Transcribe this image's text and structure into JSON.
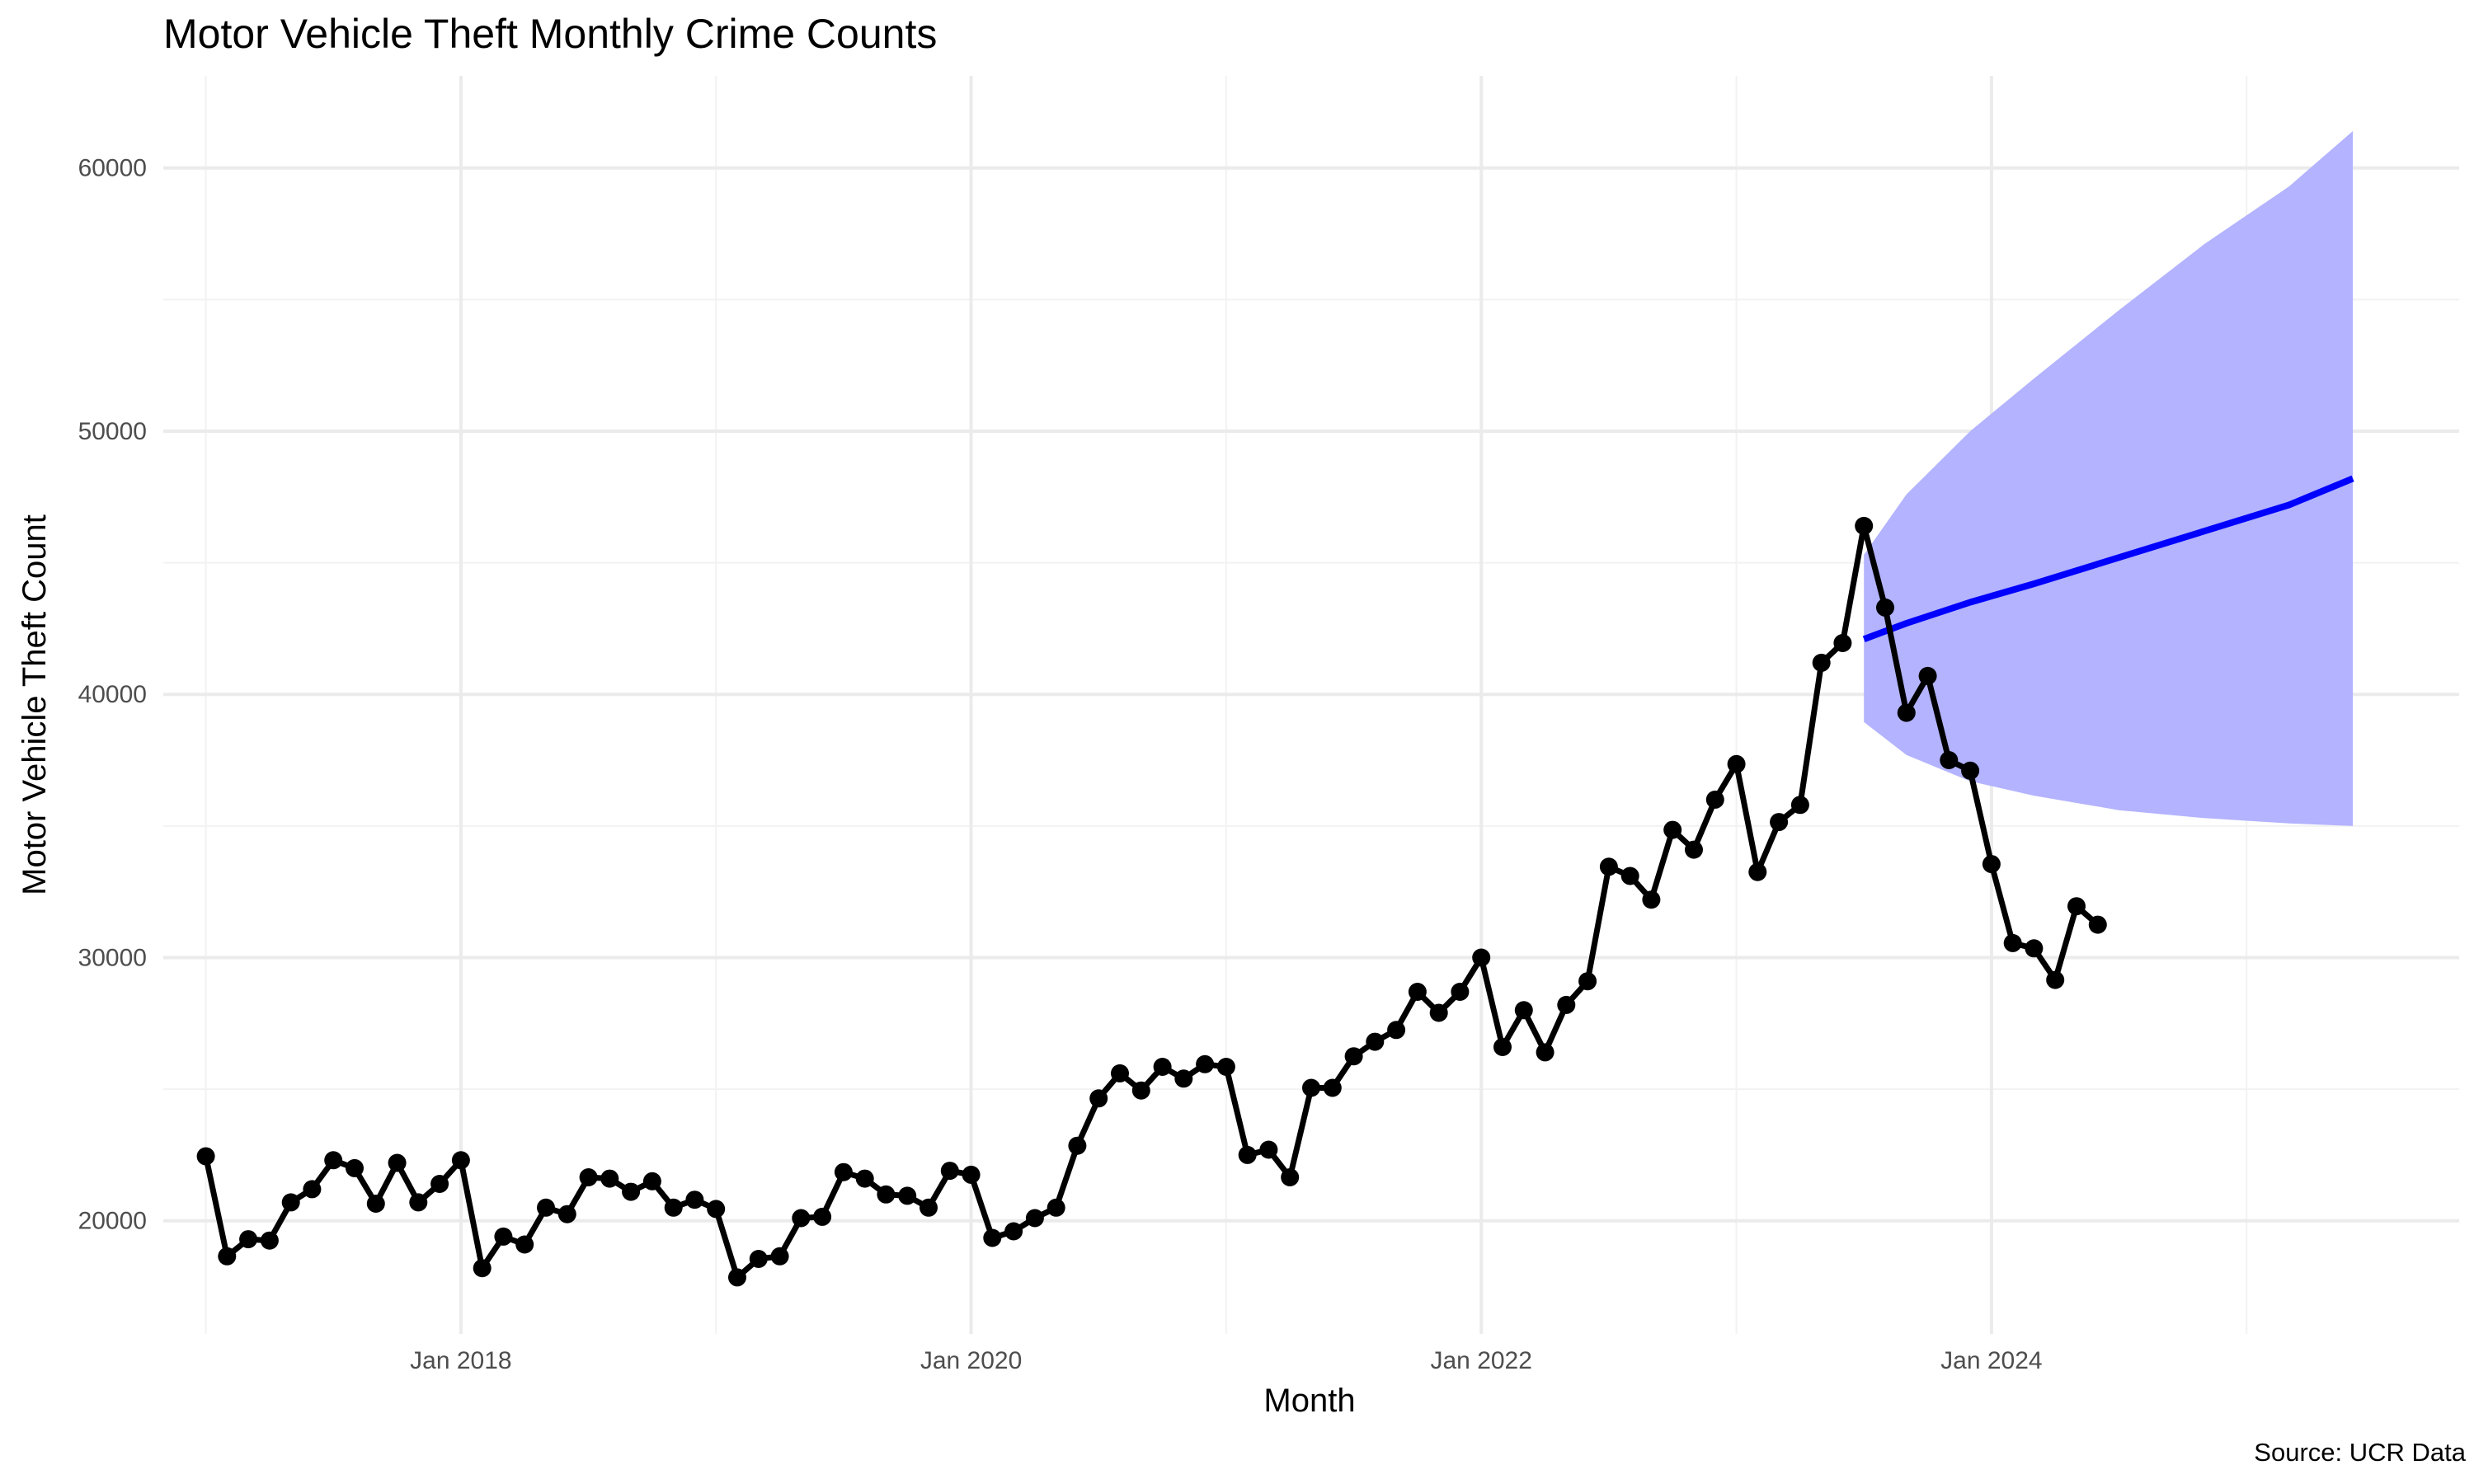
{
  "chart_data": {
    "type": "line",
    "title": "Motor Vehicle Theft Monthly Crime Counts",
    "xlabel": "Month",
    "ylabel": "Motor Vehicle Theft Count",
    "caption": "Source: UCR Data",
    "x_ticks": [
      {
        "date": "2018-01",
        "label": "Jan 2018"
      },
      {
        "date": "2020-01",
        "label": "Jan 2020"
      },
      {
        "date": "2022-01",
        "label": "Jan 2022"
      },
      {
        "date": "2024-01",
        "label": "Jan 2024"
      }
    ],
    "xlim": [
      "2016-11",
      "2025-11"
    ],
    "y_ticks": [
      {
        "value": 20000,
        "label": "20000"
      },
      {
        "value": 30000,
        "label": "30000"
      },
      {
        "value": 40000,
        "label": "40000"
      },
      {
        "value": 50000,
        "label": "50000"
      },
      {
        "value": 60000,
        "label": "60000"
      }
    ],
    "ylim": [
      15700,
      63500
    ],
    "grid": true,
    "series": [
      {
        "color": "#000000",
        "style": "line-with-points",
        "points": [
          {
            "x": "2017-01",
            "y": 22450
          },
          {
            "x": "2017-02",
            "y": 18650
          },
          {
            "x": "2017-03",
            "y": 19300
          },
          {
            "x": "2017-04",
            "y": 19250
          },
          {
            "x": "2017-05",
            "y": 20700
          },
          {
            "x": "2017-06",
            "y": 21200
          },
          {
            "x": "2017-07",
            "y": 22300
          },
          {
            "x": "2017-08",
            "y": 22000
          },
          {
            "x": "2017-09",
            "y": 20650
          },
          {
            "x": "2017-10",
            "y": 22200
          },
          {
            "x": "2017-11",
            "y": 20700
          },
          {
            "x": "2017-12",
            "y": 21400
          },
          {
            "x": "2018-01",
            "y": 22300
          },
          {
            "x": "2018-02",
            "y": 18200
          },
          {
            "x": "2018-03",
            "y": 19400
          },
          {
            "x": "2018-04",
            "y": 19100
          },
          {
            "x": "2018-05",
            "y": 20500
          },
          {
            "x": "2018-06",
            "y": 20250
          },
          {
            "x": "2018-07",
            "y": 21650
          },
          {
            "x": "2018-08",
            "y": 21600
          },
          {
            "x": "2018-09",
            "y": 21100
          },
          {
            "x": "2018-10",
            "y": 21500
          },
          {
            "x": "2018-11",
            "y": 20500
          },
          {
            "x": "2018-12",
            "y": 20800
          },
          {
            "x": "2019-01",
            "y": 20450
          },
          {
            "x": "2019-02",
            "y": 17850
          },
          {
            "x": "2019-03",
            "y": 18550
          },
          {
            "x": "2019-04",
            "y": 18650
          },
          {
            "x": "2019-05",
            "y": 20100
          },
          {
            "x": "2019-06",
            "y": 20150
          },
          {
            "x": "2019-07",
            "y": 21850
          },
          {
            "x": "2019-08",
            "y": 21600
          },
          {
            "x": "2019-09",
            "y": 21000
          },
          {
            "x": "2019-10",
            "y": 20950
          },
          {
            "x": "2019-11",
            "y": 20500
          },
          {
            "x": "2019-12",
            "y": 21900
          },
          {
            "x": "2020-01",
            "y": 21750
          },
          {
            "x": "2020-02",
            "y": 19350
          },
          {
            "x": "2020-03",
            "y": 19600
          },
          {
            "x": "2020-04",
            "y": 20100
          },
          {
            "x": "2020-05",
            "y": 20500
          },
          {
            "x": "2020-06",
            "y": 22850
          },
          {
            "x": "2020-07",
            "y": 24650
          },
          {
            "x": "2020-08",
            "y": 25600
          },
          {
            "x": "2020-09",
            "y": 24950
          },
          {
            "x": "2020-10",
            "y": 25850
          },
          {
            "x": "2020-11",
            "y": 25400
          },
          {
            "x": "2020-12",
            "y": 25950
          },
          {
            "x": "2021-01",
            "y": 25850
          },
          {
            "x": "2021-02",
            "y": 22500
          },
          {
            "x": "2021-03",
            "y": 22700
          },
          {
            "x": "2021-04",
            "y": 21650
          },
          {
            "x": "2021-05",
            "y": 25050
          },
          {
            "x": "2021-06",
            "y": 25050
          },
          {
            "x": "2021-07",
            "y": 26250
          },
          {
            "x": "2021-08",
            "y": 26800
          },
          {
            "x": "2021-09",
            "y": 27250
          },
          {
            "x": "2021-10",
            "y": 28700
          },
          {
            "x": "2021-11",
            "y": 27900
          },
          {
            "x": "2021-12",
            "y": 28700
          },
          {
            "x": "2022-01",
            "y": 30000
          },
          {
            "x": "2022-02",
            "y": 26600
          },
          {
            "x": "2022-03",
            "y": 28000
          },
          {
            "x": "2022-04",
            "y": 26400
          },
          {
            "x": "2022-05",
            "y": 28200
          },
          {
            "x": "2022-06",
            "y": 29100
          },
          {
            "x": "2022-07",
            "y": 33450
          },
          {
            "x": "2022-08",
            "y": 33100
          },
          {
            "x": "2022-09",
            "y": 32200
          },
          {
            "x": "2022-10",
            "y": 34850
          },
          {
            "x": "2022-11",
            "y": 34100
          },
          {
            "x": "2022-12",
            "y": 36000
          },
          {
            "x": "2023-01",
            "y": 37350
          },
          {
            "x": "2023-02",
            "y": 33250
          },
          {
            "x": "2023-03",
            "y": 35150
          },
          {
            "x": "2023-04",
            "y": 35800
          },
          {
            "x": "2023-05",
            "y": 41200
          },
          {
            "x": "2023-06",
            "y": 41950
          },
          {
            "x": "2023-07",
            "y": 46400
          },
          {
            "x": "2023-08",
            "y": 43300
          },
          {
            "x": "2023-09",
            "y": 39300
          },
          {
            "x": "2023-10",
            "y": 40700
          },
          {
            "x": "2023-11",
            "y": 37500
          },
          {
            "x": "2023-12",
            "y": 37100
          },
          {
            "x": "2024-01",
            "y": 33550
          },
          {
            "x": "2024-02",
            "y": 30550
          },
          {
            "x": "2024-03",
            "y": 30350
          },
          {
            "x": "2024-04",
            "y": 29150
          },
          {
            "x": "2024-05",
            "y": 31950
          },
          {
            "x": "2024-06",
            "y": 31250
          }
        ]
      }
    ],
    "forecast": {
      "line_color": "#0000ff",
      "band_color": "#b3b3ff",
      "points": [
        {
          "x": "2023-07",
          "y": 42100,
          "lower": 38950,
          "upper": 45300
        },
        {
          "x": "2023-09",
          "y": 42700,
          "lower": 37700,
          "upper": 47600
        },
        {
          "x": "2023-12",
          "y": 43500,
          "lower": 36700,
          "upper": 50000
        },
        {
          "x": "2024-03",
          "y": 44200,
          "lower": 36150,
          "upper": 52000
        },
        {
          "x": "2024-07",
          "y": 45200,
          "lower": 35600,
          "upper": 54600
        },
        {
          "x": "2024-11",
          "y": 46200,
          "lower": 35300,
          "upper": 57100
        },
        {
          "x": "2025-03",
          "y": 47200,
          "lower": 35100,
          "upper": 59300
        },
        {
          "x": "2025-06",
          "y": 48200,
          "lower": 35000,
          "upper": 61400
        }
      ]
    }
  }
}
